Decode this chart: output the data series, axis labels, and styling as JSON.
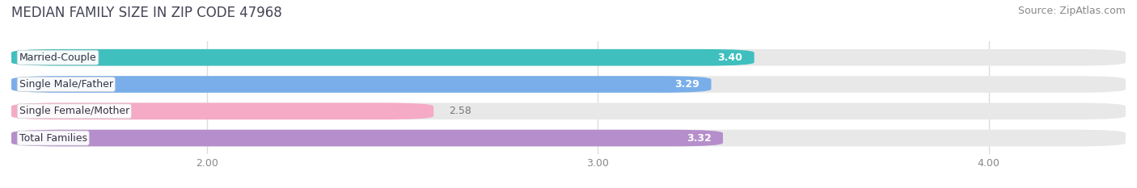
{
  "title": "MEDIAN FAMILY SIZE IN ZIP CODE 47968",
  "source": "Source: ZipAtlas.com",
  "categories": [
    "Married-Couple",
    "Single Male/Father",
    "Single Female/Mother",
    "Total Families"
  ],
  "values": [
    3.4,
    3.29,
    2.58,
    3.32
  ],
  "bar_colors": [
    "#40bfbf",
    "#7aaeea",
    "#f5aac5",
    "#b58ecb"
  ],
  "label_colors": [
    "white",
    "white",
    "#777777",
    "white"
  ],
  "xlim_min": 1.5,
  "xlim_max": 4.35,
  "xstart": 1.5,
  "xticks": [
    2.0,
    3.0,
    4.0
  ],
  "xtick_labels": [
    "2.00",
    "3.00",
    "4.00"
  ],
  "bar_height": 0.62,
  "background_color": "#ffffff",
  "bar_bg_color": "#e8e8e8",
  "grid_color": "#dddddd",
  "title_fontsize": 12,
  "source_fontsize": 9,
  "label_fontsize": 9,
  "value_fontsize": 9,
  "tick_fontsize": 9,
  "title_color": "#444455",
  "source_color": "#888888",
  "tick_color": "#888888",
  "value_color_inside": "white",
  "value_color_outside": "#777777"
}
